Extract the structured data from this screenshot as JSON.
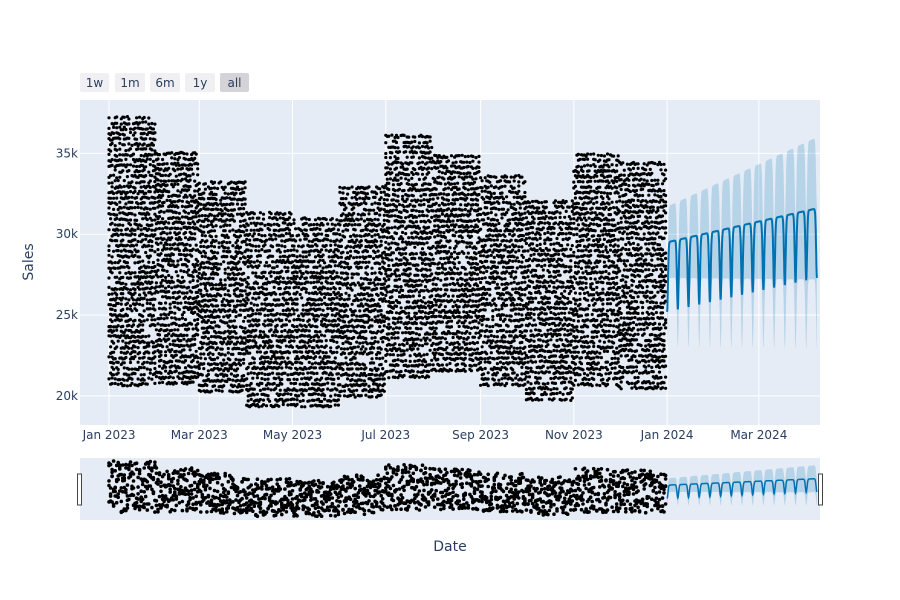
{
  "range_selector": {
    "buttons": [
      {
        "label": "1w",
        "active": false
      },
      {
        "label": "1m",
        "active": false
      },
      {
        "label": "6m",
        "active": false
      },
      {
        "label": "1y",
        "active": false
      },
      {
        "label": "all",
        "active": true
      }
    ]
  },
  "colors": {
    "plot_bg": "#e5ecf6",
    "grid": "#ffffff",
    "points": "#000000",
    "forecast_line": "#0072b2",
    "forecast_band": "rgba(0,114,178,0.2)",
    "button_bg": "#f0f0f3",
    "button_active_bg": "#d4d4d8"
  },
  "chart_data": {
    "type": "scatter",
    "xlabel": "Date",
    "ylabel": "Sales",
    "x_range": [
      "2022-12-13",
      "2024-04-10"
    ],
    "y_range": [
      18200,
      38300
    ],
    "x_ticks": [
      {
        "date": "2023-01-01",
        "label": "Jan 2023"
      },
      {
        "date": "2023-03-01",
        "label": "Mar 2023"
      },
      {
        "date": "2023-05-01",
        "label": "May 2023"
      },
      {
        "date": "2023-07-01",
        "label": "Jul 2023"
      },
      {
        "date": "2023-09-01",
        "label": "Sep 2023"
      },
      {
        "date": "2023-11-01",
        "label": "Nov 2023"
      },
      {
        "date": "2024-01-01",
        "label": "Jan 2024"
      },
      {
        "date": "2024-03-01",
        "label": "Mar 2024"
      }
    ],
    "y_ticks": [
      {
        "value": 20000,
        "label": "20k"
      },
      {
        "value": 25000,
        "label": "25k"
      },
      {
        "value": 30000,
        "label": "30k"
      },
      {
        "value": 35000,
        "label": "35k"
      }
    ],
    "actual_monthly": [
      {
        "month": "2023-01",
        "min": 20700,
        "max": 37400
      },
      {
        "month": "2023-02",
        "min": 20800,
        "max": 35100
      },
      {
        "month": "2023-03",
        "min": 20300,
        "max": 33400
      },
      {
        "month": "2023-04",
        "min": 19400,
        "max": 31600
      },
      {
        "month": "2023-05",
        "min": 19400,
        "max": 31000
      },
      {
        "month": "2023-06",
        "min": 20000,
        "max": 32900
      },
      {
        "month": "2023-07",
        "min": 21200,
        "max": 36100
      },
      {
        "month": "2023-08",
        "min": 21600,
        "max": 34800
      },
      {
        "month": "2023-09",
        "min": 20700,
        "max": 33600
      },
      {
        "month": "2023-10",
        "min": 19800,
        "max": 32300
      },
      {
        "month": "2023-11",
        "min": 20700,
        "max": 35100
      },
      {
        "month": "2023-12",
        "min": 20500,
        "max": 34400
      }
    ],
    "forecast": {
      "start": "2024-01-01",
      "end": "2024-04-08",
      "trend_start": 29500,
      "trend_end": 31600,
      "weekly_dip": 4300,
      "band_start": 2200,
      "band_end": 4400
    },
    "range_slider": true,
    "grid": true
  }
}
